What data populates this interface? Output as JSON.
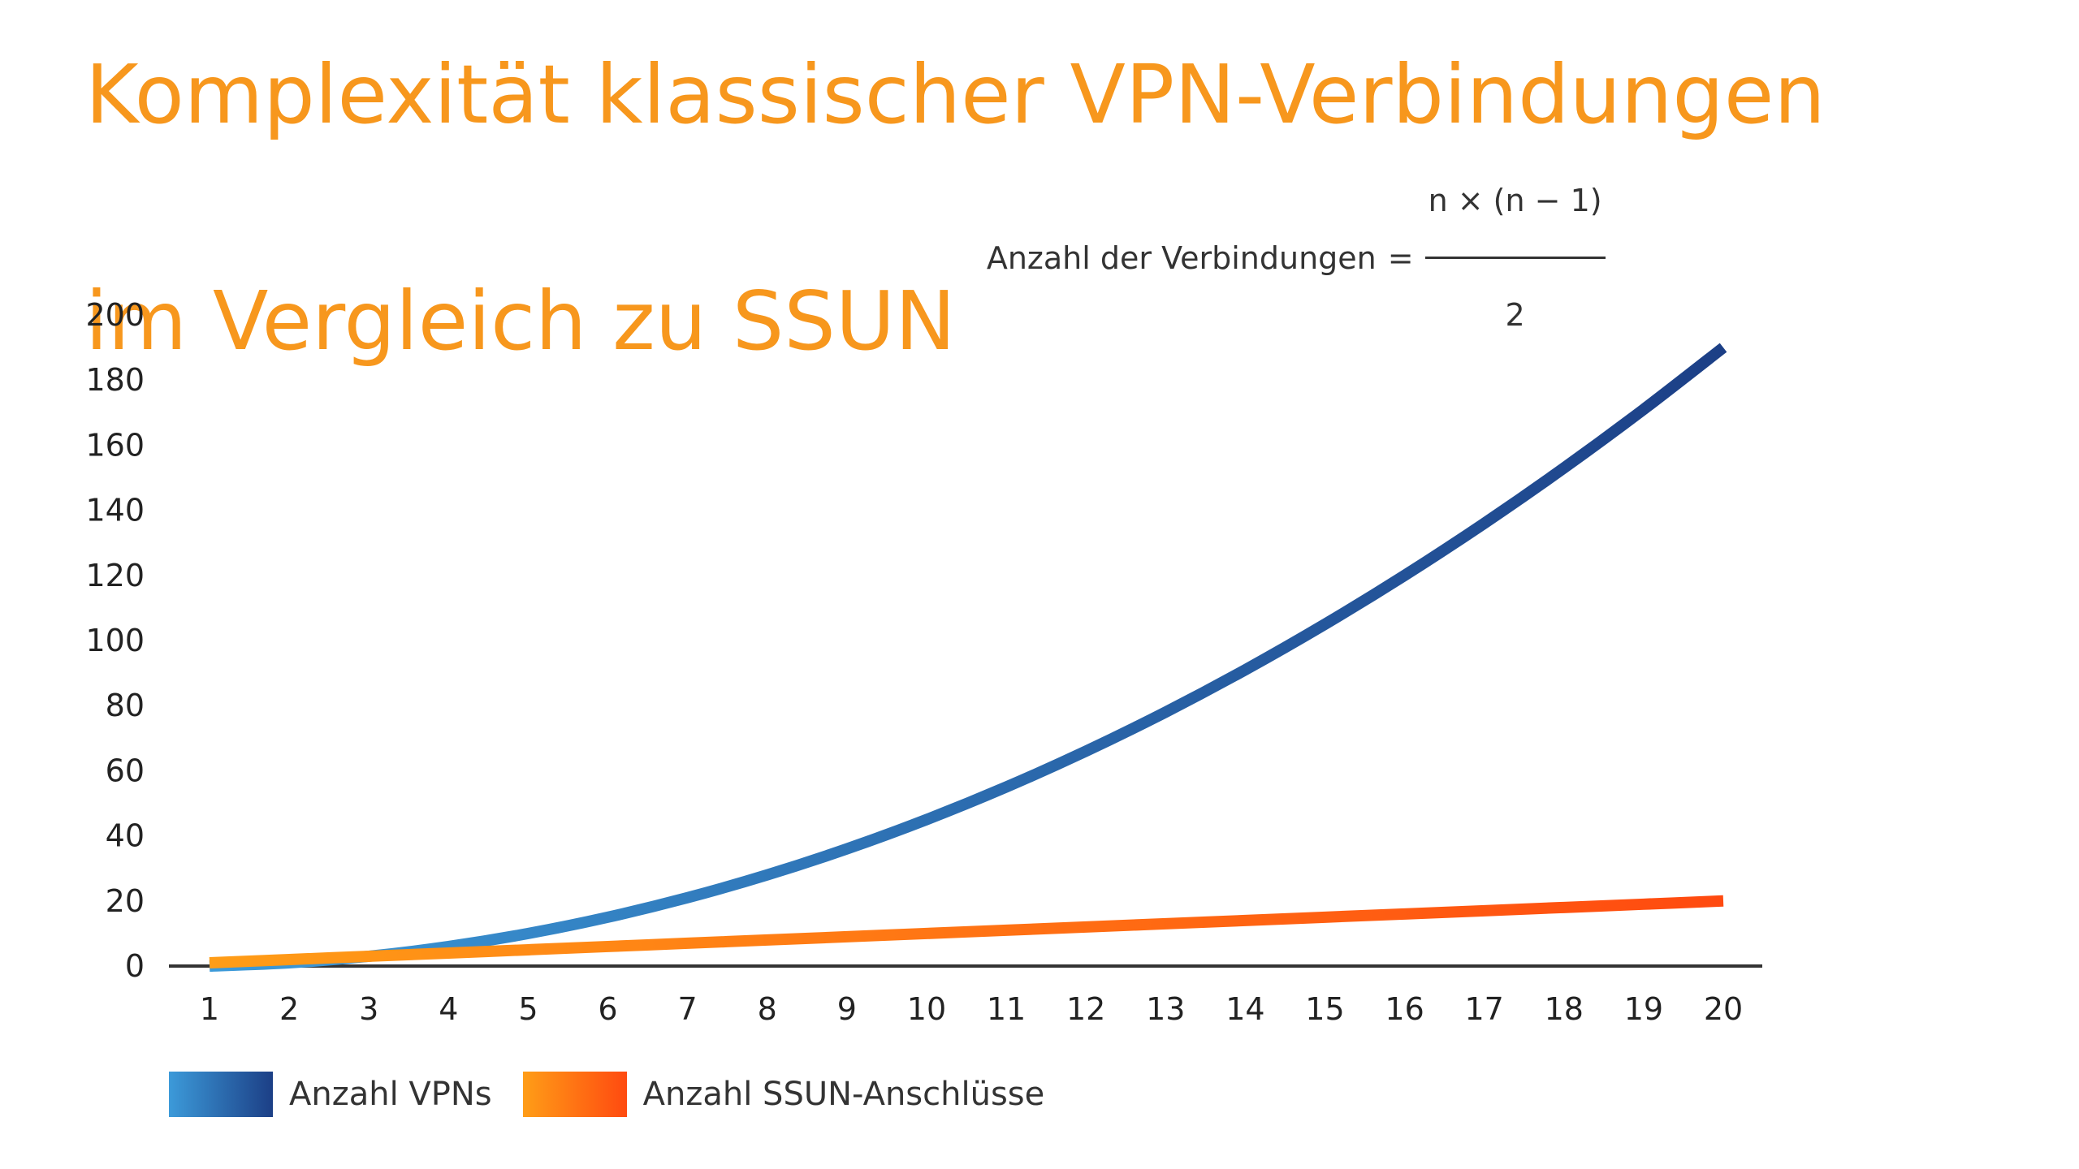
{
  "title": {
    "line1": "Komplexität klassischer VPN-Verbindungen",
    "line2": "im Vergleich zu SSUN"
  },
  "formula": {
    "lhs": "Anzahl der Verbindungen",
    "equals": "=",
    "numerator": "n × (n − 1)",
    "denominator": "2"
  },
  "legend": {
    "vpn_label": "Anzahl VPNs",
    "ssun_label": "Anzahl SSUN-Anschlüsse"
  },
  "colors": {
    "title": "#f7971d",
    "vpn_start": "#3c9ad9",
    "vpn_end": "#1c3f86",
    "ssun_start": "#ff9d17",
    "ssun_end": "#ff4a10",
    "axis": "#333333"
  },
  "chart_data": {
    "type": "line",
    "x": [
      1,
      2,
      3,
      4,
      5,
      6,
      7,
      8,
      9,
      10,
      11,
      12,
      13,
      14,
      15,
      16,
      17,
      18,
      19,
      20
    ],
    "series": [
      {
        "name": "Anzahl VPNs",
        "values": [
          0,
          1,
          3,
          6,
          10,
          15,
          21,
          28,
          36,
          45,
          55,
          66,
          78,
          91,
          105,
          120,
          136,
          153,
          171,
          190
        ]
      },
      {
        "name": "Anzahl SSUN-Anschlüsse",
        "values": [
          1,
          2,
          3,
          4,
          5,
          6,
          7,
          8,
          9,
          10,
          11,
          12,
          13,
          14,
          15,
          16,
          17,
          18,
          19,
          20
        ]
      }
    ],
    "yticks": [
      0,
      20,
      40,
      60,
      80,
      100,
      120,
      140,
      160,
      180,
      200
    ],
    "ylim": [
      0,
      200
    ],
    "grid": false,
    "legend_position": "bottom-left"
  }
}
